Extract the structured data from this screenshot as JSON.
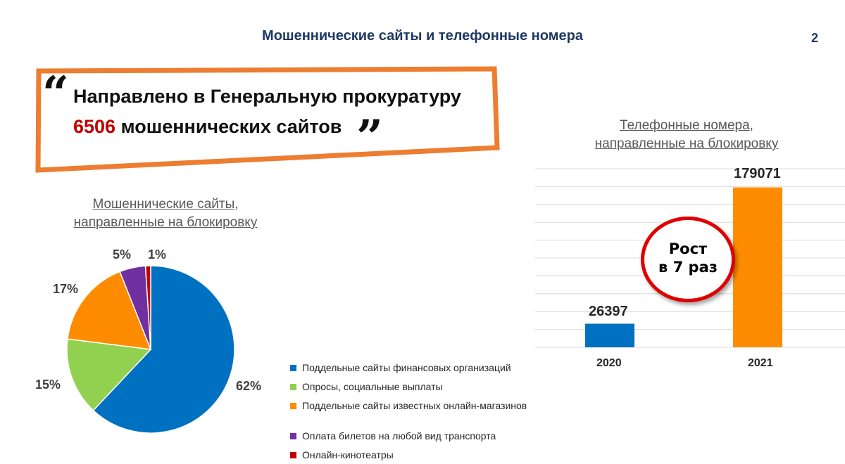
{
  "slide": {
    "title": "Мошеннические сайты и телефонные номера",
    "page_number": "2"
  },
  "callout": {
    "line1": "Направлено в Генеральную прокуратуру",
    "number": "6506",
    "line2_rest": " мошеннических сайтов",
    "open_quote": "“",
    "close_quote": "”",
    "border_color": "#ed7d31",
    "number_color": "#c00000"
  },
  "growth_badge": {
    "line1": "Рост",
    "line2": "в 7 раз",
    "border_color": "#e00000"
  },
  "chart_data": [
    {
      "type": "pie",
      "title_line1": "Мошеннические сайты,",
      "title_line2": "направленные на блокировку",
      "slices": [
        {
          "name": "Поддельные сайты финансовых организаций",
          "value": 62,
          "label": "62%",
          "color": "#0070c0"
        },
        {
          "name": "Опросы, социальные выплаты",
          "value": 15,
          "label": "15%",
          "color": "#92d050"
        },
        {
          "name": "Поддельные сайты известных онлайн-магазинов",
          "value": 17,
          "label": "17%",
          "color": "#ff8c00"
        },
        {
          "name": "Оплата билетов на любой вид транспорта",
          "value": 5,
          "label": "5%",
          "color": "#7030a0"
        },
        {
          "name": "Онлайн-кинотеатры",
          "value": 1,
          "label": "1%",
          "color": "#c00000"
        }
      ],
      "legend_position": "right"
    },
    {
      "type": "bar",
      "title_line1": "Телефонные номера,",
      "title_line2": "направленные на блокировку",
      "categories": [
        "2020",
        "2021"
      ],
      "values": [
        26397,
        179071
      ],
      "value_labels": [
        "26397",
        "179071"
      ],
      "colors": [
        "#0070c0",
        "#ff8c00"
      ],
      "ylim": [
        0,
        200000
      ],
      "grid": true
    }
  ]
}
